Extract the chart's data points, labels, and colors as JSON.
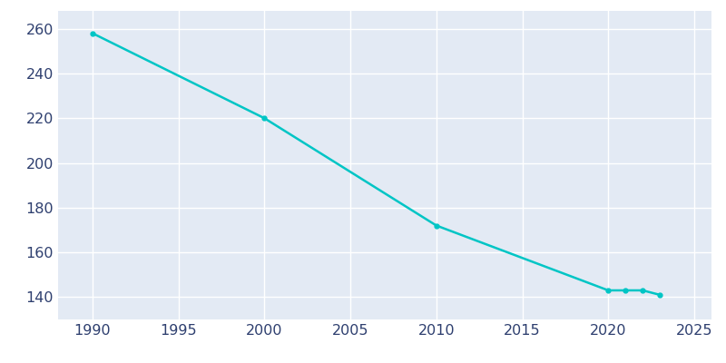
{
  "years": [
    1990,
    2000,
    2010,
    2020,
    2021,
    2022,
    2023
  ],
  "population": [
    258,
    220,
    172,
    143,
    143,
    143,
    141
  ],
  "line_color": "#00C5C5",
  "marker": "o",
  "marker_size": 3.5,
  "line_width": 1.8,
  "figure_background_color": "#FFFFFF",
  "axes_background_color": "#E3EAF4",
  "grid_color": "#FFFFFF",
  "xlim": [
    1988,
    2026
  ],
  "ylim": [
    130,
    268
  ],
  "xticks": [
    1990,
    1995,
    2000,
    2005,
    2010,
    2015,
    2020,
    2025
  ],
  "yticks": [
    140,
    160,
    180,
    200,
    220,
    240,
    260
  ],
  "tick_color": "#2E3F6F",
  "tick_fontsize": 11.5
}
